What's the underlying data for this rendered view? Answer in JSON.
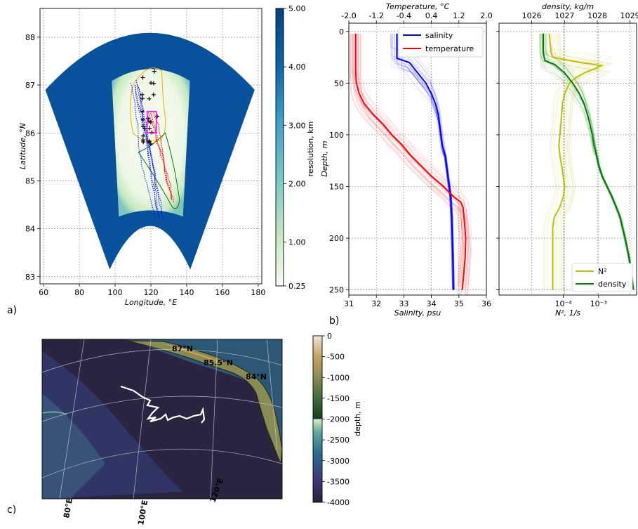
{
  "panels": {
    "a": "a)",
    "b": "b)",
    "c": "c)"
  },
  "colors": {
    "salinity": "#0000ff",
    "temperature": "#ff0000",
    "n2": "#bfbf00",
    "density": "#008000",
    "dark_blue": "#08519c",
    "orange": "#ffa500",
    "magenta": "#ff00ff",
    "track": "#ffffff"
  },
  "chart_data": [
    {
      "id": "a",
      "type": "heatmap",
      "xlabel": "Longitude, °E",
      "ylabel": "Latitude, °N",
      "xlim": [
        58,
        182
      ],
      "ylim": [
        82.85,
        88.6
      ],
      "xticks": [
        60,
        80,
        100,
        120,
        140,
        160,
        180
      ],
      "yticks": [
        83,
        84,
        85,
        86,
        87,
        88
      ],
      "grid": true,
      "colorbar": {
        "label": "resolution, km",
        "vmin": 0.25,
        "vmax": 5.0,
        "ticks": [
          "0.25",
          "1.00",
          "2.00",
          "3.00",
          "4.00",
          "5.00"
        ]
      },
      "mesh_boundary": {
        "lon_min": 61,
        "lon_max": 178,
        "lat_top": 88.4,
        "lat_bottom": 83.15
      },
      "refined_region": {
        "lon_min": 106,
        "lon_max": 134,
        "lat_min": 84.4,
        "lat_max": 87.35
      },
      "overlays": {
        "orange_contour": true,
        "green_contour": true,
        "blue_tracks": true,
        "red_tracks": true,
        "black_crosses": true,
        "magenta_box": [
          118,
          123,
          86.0,
          86.45
        ]
      }
    },
    {
      "id": "b1",
      "type": "line",
      "ylabel": "Depth, m",
      "ylim": [
        255,
        -8
      ],
      "yticks": [
        0,
        50,
        100,
        150,
        200,
        250
      ],
      "bottom_axis": {
        "label": "Salinity, psu",
        "lim": [
          31,
          36
        ],
        "ticks": [
          31,
          32,
          33,
          34,
          35,
          36
        ]
      },
      "top_axis": {
        "label": "Temperature, °C",
        "lim": [
          -2.0,
          2.0
        ],
        "ticks": [
          "-2.0",
          "-1.2",
          "-0.4",
          "0.4",
          "1.2",
          "2.0"
        ]
      },
      "legend": "top-right",
      "grid": true,
      "series": [
        {
          "name": "salinity",
          "axis": "bottom",
          "depth": [
            2,
            10,
            20,
            26,
            30,
            40,
            50,
            60,
            70,
            80,
            90,
            100,
            110,
            120,
            130,
            140,
            150,
            160,
            170,
            180,
            200,
            220,
            250
          ],
          "values": [
            32.75,
            32.75,
            32.75,
            32.75,
            33.2,
            33.5,
            33.8,
            34.0,
            34.15,
            34.25,
            34.3,
            34.35,
            34.4,
            34.5,
            34.55,
            34.6,
            34.65,
            34.7,
            34.72,
            34.74,
            34.76,
            34.78,
            34.8
          ]
        },
        {
          "name": "temperature",
          "axis": "top",
          "depth": [
            2,
            10,
            20,
            30,
            40,
            50,
            60,
            70,
            80,
            90,
            100,
            110,
            120,
            130,
            140,
            150,
            160,
            165,
            170,
            180,
            200,
            220,
            250
          ],
          "values": [
            -1.8,
            -1.8,
            -1.8,
            -1.8,
            -1.8,
            -1.78,
            -1.7,
            -1.55,
            -1.3,
            -1.0,
            -0.75,
            -0.45,
            -0.2,
            0.1,
            0.4,
            0.75,
            1.05,
            1.25,
            1.32,
            1.35,
            1.4,
            1.38,
            1.3
          ]
        }
      ]
    },
    {
      "id": "b2",
      "type": "line",
      "xlabel": "N², 1/s",
      "xscale": "log",
      "xlim": [
        1.5e-06,
        0.012
      ],
      "xticks": [
        "10⁻⁴",
        "10⁻³"
      ],
      "top_axis": {
        "label": "density, kg/m",
        "lim": [
          1025.0,
          1029.2
        ],
        "ticks": [
          "1026",
          "1027",
          "1028",
          "1029"
        ]
      },
      "ylim": [
        255,
        -8
      ],
      "legend": "bottom-right",
      "grid": true,
      "series": [
        {
          "name": "N²",
          "axis": "bottom",
          "depth": [
            2,
            10,
            20,
            25,
            30,
            33,
            36,
            40,
            45,
            50,
            60,
            70,
            80,
            90,
            100,
            110,
            120,
            130,
            140,
            150,
            160,
            170,
            180,
            190,
            200,
            220,
            240,
            250
          ],
          "values": [
            4e-05,
            4.2e-05,
            4.5e-05,
            5e-05,
            0.0003,
            0.0012,
            0.0008,
            0.0004,
            0.00022,
            0.00015,
            0.00011,
            9.5e-05,
            9e-05,
            8.5e-05,
            8e-05,
            7.5e-05,
            8e-05,
            9e-05,
            0.0001,
            0.00011,
            0.0001,
            8e-05,
            5.5e-05,
            5e-05,
            5e-05,
            5e-05,
            5e-05,
            5e-05
          ]
        },
        {
          "name": "density",
          "axis": "top",
          "depth": [
            2,
            20,
            28,
            32,
            40,
            50,
            60,
            70,
            80,
            90,
            100,
            110,
            120,
            130,
            140,
            150,
            160,
            170,
            180,
            200,
            220,
            250
          ],
          "values": [
            1026.35,
            1026.35,
            1026.4,
            1026.7,
            1027.0,
            1027.25,
            1027.45,
            1027.6,
            1027.7,
            1027.78,
            1027.85,
            1027.9,
            1027.98,
            1028.05,
            1028.15,
            1028.3,
            1028.45,
            1028.58,
            1028.7,
            1028.85,
            1028.98,
            1029.1
          ]
        }
      ]
    },
    {
      "id": "c",
      "type": "heatmap",
      "colorbar": {
        "label": "depth, m",
        "vmin": -4000,
        "vmax": 0,
        "ticks": [
          "0",
          "-500",
          "-1000",
          "-1500",
          "-2000",
          "-2500",
          "-3000",
          "-3500",
          "-4000"
        ]
      },
      "lat_labels": [
        "87°N",
        "85.5°N",
        "84°N"
      ],
      "lon_labels": [
        "80°E",
        "100°E",
        "120°E"
      ],
      "track": "drift trajectory"
    }
  ]
}
